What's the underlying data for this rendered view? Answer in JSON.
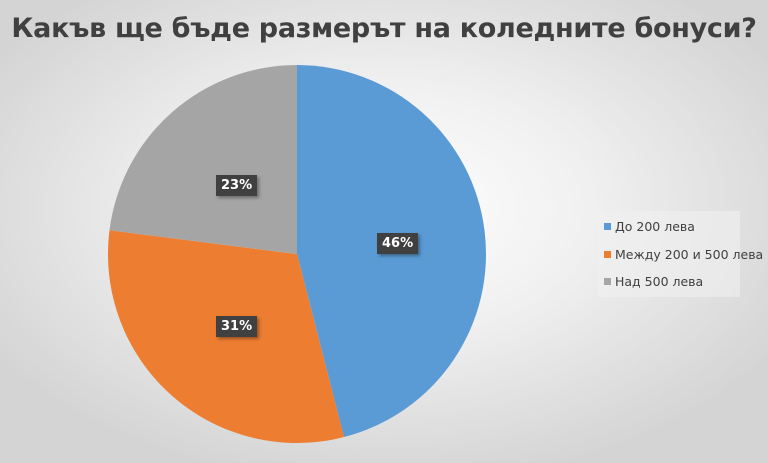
{
  "chart_data": {
    "type": "pie",
    "title": "Какъв ще бъде размерът на коледните бонуси?",
    "categories": [
      "До 200 лева",
      "Между 200 и 500 лева",
      "Над 500 лева"
    ],
    "values": [
      46,
      31,
      23
    ],
    "value_labels": [
      "46%",
      "31%",
      "23%"
    ],
    "colors": [
      "#5b9bd5",
      "#ed7d31",
      "#a5a5a5"
    ],
    "legend_position": "right",
    "start_angle": "12 o'clock, clockwise"
  },
  "title": "Какъв ще бъде размерът на коледните бонуси?",
  "legend": {
    "items": [
      {
        "label": "До 200 лева",
        "color": "#5b9bd5"
      },
      {
        "label": "Между 200 и 500 лева",
        "color": "#ed7d31"
      },
      {
        "label": "Над 500 лева",
        "color": "#a5a5a5"
      }
    ]
  },
  "labels": {
    "blue": "46%",
    "orange": "31%",
    "gray": "23%"
  }
}
